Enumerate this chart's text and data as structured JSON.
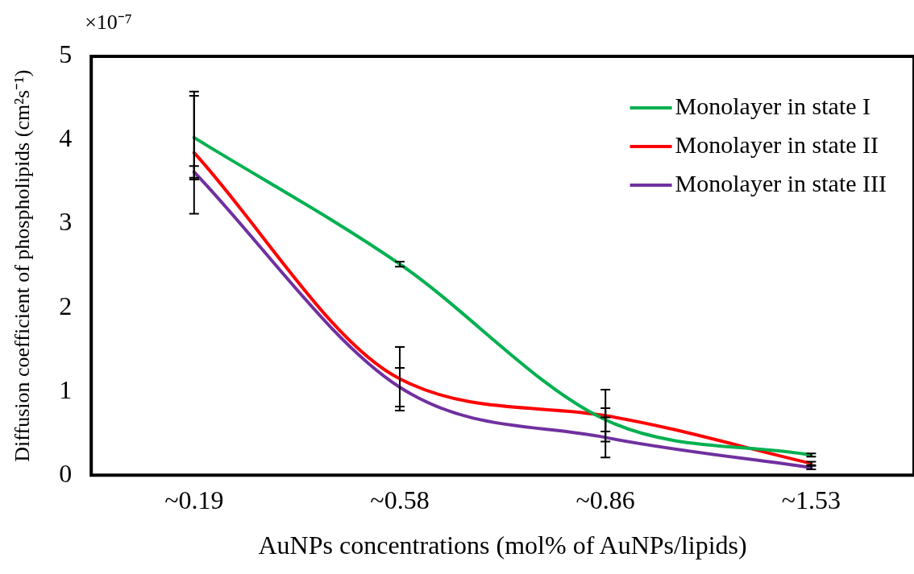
{
  "chart_data": {
    "type": "line",
    "xlabel": "AuNPs concentrations (mol% of AuNPs/lipids)",
    "ylabel": "Diffusion coefficient of phospholipids (cm²s⁻¹)",
    "annotations": [
      "×10⁻⁷"
    ],
    "categories": [
      "~0.19",
      "~0.58",
      "~0.86",
      "~1.53"
    ],
    "series": [
      {
        "name": "Monolayer in state I",
        "color": "#00b050",
        "values": [
          4.03,
          2.52,
          0.66,
          0.24
        ],
        "errors": [
          0.5,
          0.03,
          0.14,
          0.02
        ]
      },
      {
        "name": "Monolayer in state II",
        "color": "#ff0000",
        "values": [
          3.85,
          1.15,
          0.71,
          0.14
        ],
        "errors": [
          0.73,
          0.38,
          0.31,
          0.02
        ]
      },
      {
        "name": "Monolayer in state III",
        "color": "#7030a0",
        "values": [
          3.62,
          1.05,
          0.45,
          0.09
        ],
        "errors": [
          0.07,
          0.23,
          0.24,
          0.02
        ]
      }
    ],
    "ylim": [
      0,
      5
    ],
    "yticks": [
      0,
      1,
      2,
      3,
      4,
      5
    ],
    "grid": false,
    "legend": "top right",
    "marker": "none",
    "line_style": "solid"
  }
}
